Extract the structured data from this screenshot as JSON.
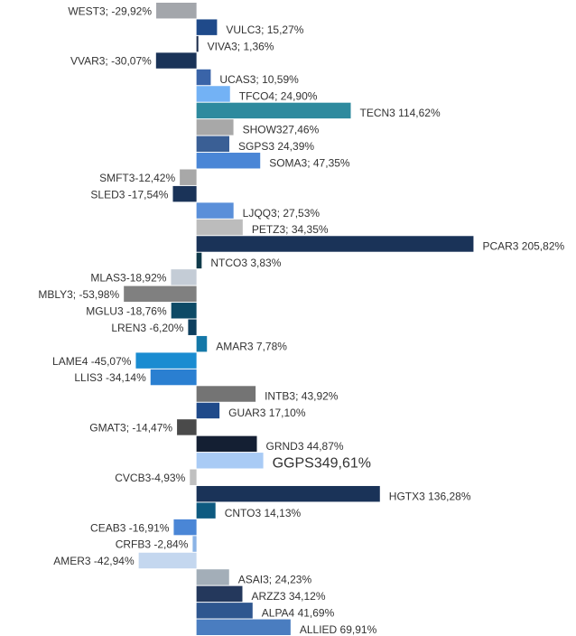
{
  "chart_data": {
    "type": "bar",
    "orientation": "horizontal",
    "value_labels": [
      "WEST3; -29,92%",
      "VULC3; 15,27%",
      "VIVA3; 1,36%",
      "VVAR3; -30,07%",
      "UCAS3; 10,59%",
      "TFCO4; 24,90%",
      "TECN3 114,62%",
      "SHOW327,46%",
      "SGPS3 24,39%",
      "SOMA3; 47,35%",
      "SMFT3-12,42%",
      "SLED3 -17,54%",
      "LJQQ3; 27,53%",
      "PETZ3; 34,35%",
      "PCAR3 205,82%",
      "NTCO3 3,83%",
      "MLAS3-18,92%",
      "MBLY3; -53,98%",
      "MGLU3 -18,76%",
      "LREN3 -6,20%",
      "AMAR3 7,78%",
      "LAME4 -45,07%",
      "LLIS3 -34,14%",
      "INTB3; 43,92%",
      "GUAR3 17,10%",
      "GMAT3; -14,47%",
      "GRND3 44,87%",
      "GGPS349,61%",
      "CVCB3-4,93%",
      "HGTX3 136,28%",
      "CNTO3 14,13%",
      "CEAB3 -16,91%",
      "CRFB3 -2,84%",
      "AMER3 -42,94%",
      "ASAI3; 24,23%",
      "ARZZ3 34,12%",
      "ALPA4 41,69%",
      "ALLIED 69,91%"
    ],
    "values": [
      -29.92,
      15.27,
      1.36,
      -30.07,
      10.59,
      24.9,
      114.62,
      27.46,
      24.39,
      47.35,
      -12.42,
      -17.54,
      27.53,
      34.35,
      205.82,
      3.83,
      -18.92,
      -53.98,
      -18.76,
      -6.2,
      7.78,
      -45.07,
      -34.14,
      43.92,
      17.1,
      -14.47,
      44.87,
      49.61,
      -4.93,
      136.28,
      14.13,
      -16.91,
      -2.84,
      -42.94,
      24.23,
      34.12,
      41.69,
      69.91
    ],
    "colors": [
      "#a3a6ab",
      "#1f4a8a",
      "#1a2a4a",
      "#1a3358",
      "#3a64a8",
      "#73b2f5",
      "#2e8a9e",
      "#a8a8a8",
      "#3a5f95",
      "#4a86d6",
      "#a8a8a8",
      "#1a3358",
      "#5a8fd9",
      "#bcbcbc",
      "#1a3358",
      "#0f3a4a",
      "#c4ccd6",
      "#808080",
      "#0d4a66",
      "#0e3f5e",
      "#1478a8",
      "#1a8cd1",
      "#2a7fd1",
      "#747474",
      "#1f4a8a",
      "#4a4a4a",
      "#141f33",
      "#a9cbf5",
      "#c0c0c0",
      "#1a3358",
      "#0e5a80",
      "#4a86d6",
      "#8ab3e6",
      "#c4d7ef",
      "#a3aeb8",
      "#24385c",
      "#2e568f",
      "#4a7dc0"
    ],
    "xlim": [
      -146,
      282
    ]
  }
}
